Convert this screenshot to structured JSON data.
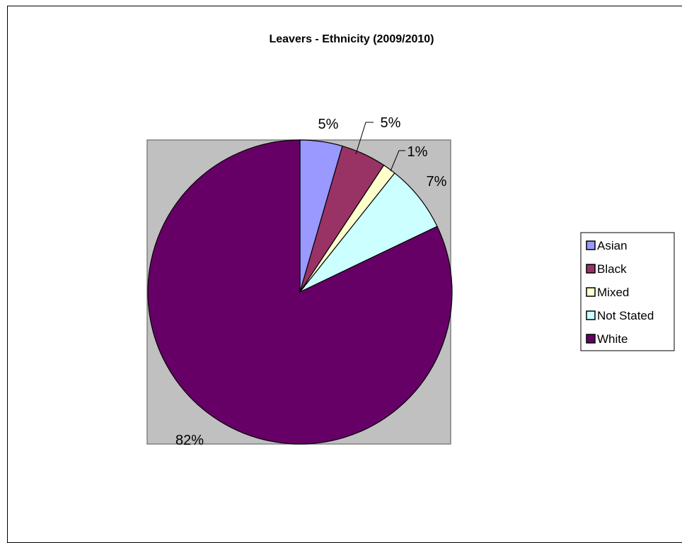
{
  "chart_data": {
    "type": "pie",
    "title": "Leavers - Ethnicity (2009/2010)",
    "categories": [
      "Asian",
      "Black",
      "Mixed",
      "Not Stated",
      "White"
    ],
    "values": [
      4.5,
      4.8,
      1.4,
      7.2,
      82.1
    ],
    "labels": [
      "5%",
      "5%",
      "1%",
      "7%",
      "82%"
    ],
    "colors": [
      "#9999ff",
      "#993366",
      "#ffffcc",
      "#ccffff",
      "#660066"
    ],
    "plot_background": "#c0c0c0",
    "legend_position": "right"
  }
}
